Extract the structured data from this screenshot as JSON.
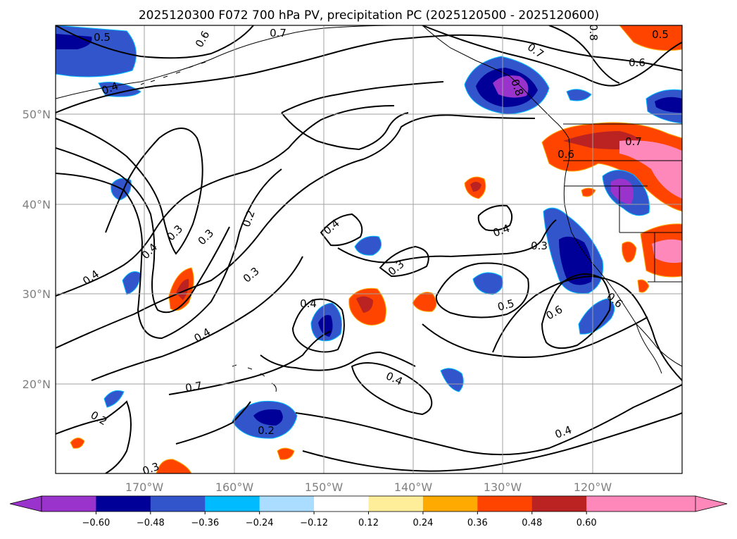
{
  "title": "2025120300 F072 700 hPa PV, precipitation PC (2025120500 - 2025120600)",
  "lat_ticks": [
    "50°N",
    "40°N",
    "30°N",
    "20°N"
  ],
  "lon_ticks": [
    "170°W",
    "160°W",
    "150°W",
    "140°W",
    "130°W",
    "120°W"
  ],
  "colorbar": {
    "colors": [
      "#9933cc",
      "#000099",
      "#3355cc",
      "#00bbff",
      "#aaddff",
      "#ffffff",
      "#ffee99",
      "#ffaa00",
      "#ff4400",
      "#bb2222",
      "#ff88bb",
      "#ff88bb"
    ],
    "under_color": "#9933cc",
    "over_color": "#ff88bb",
    "ticks": [
      "−0.60",
      "−0.48",
      "−0.36",
      "−0.24",
      "−0.12",
      "0.12",
      "0.24",
      "0.36",
      "0.48",
      "0.60"
    ]
  },
  "contour_labels": [
    "0.5",
    "0.6",
    "0.7",
    "0.8",
    "0.7",
    "0.6",
    "0.5",
    "0.6",
    "0.8",
    "0.7",
    "0.4",
    "0.4",
    "0.3",
    "0.3",
    "0.2",
    "0.4",
    "0.3",
    "0.4",
    "0.4",
    "0.3",
    "0.4",
    "0.4",
    "0.3",
    "0.5",
    "0.6",
    "0.6",
    "0.7",
    "0.4",
    "0.2",
    "0.2",
    "0.4",
    "0.3"
  ],
  "colors": {
    "contour": "#000000",
    "grid": "#a0a0a0",
    "coast": "#000000",
    "tick_text": "#808080"
  }
}
